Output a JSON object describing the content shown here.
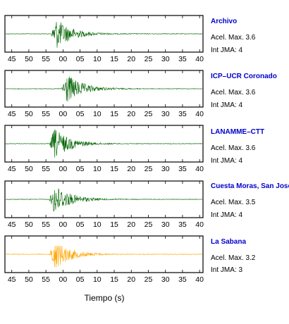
{
  "chart_data": {
    "type": "line",
    "xlabel": "Tiempo (s)",
    "x_tick_labels": [
      "45",
      "50",
      "55",
      "00",
      "05",
      "10",
      "15",
      "20",
      "25",
      "30",
      "35",
      "40"
    ],
    "x_range_s": [
      -17,
      41
    ],
    "grid": false,
    "labels": {
      "acel_prefix": "Acel. Max.",
      "int_prefix": "Int JMA:"
    },
    "panels": [
      {
        "station": "Archivo",
        "acel_max": "3.6",
        "int_jma": "4",
        "trace_color": "#006400",
        "onset_s": -3.5
      },
      {
        "station": "ICP–UCR Coronado",
        "acel_max": "3.6",
        "int_jma": "4",
        "trace_color": "#006400",
        "onset_s": -0.5
      },
      {
        "station": "LANAMME–CTT",
        "acel_max": "3.6",
        "int_jma": "4",
        "trace_color": "#006400",
        "onset_s": -4.0
      },
      {
        "station": "Cuesta Moras, San Jose",
        "acel_max": "3.5",
        "int_jma": "4",
        "trace_color": "#006400",
        "onset_s": -4.0
      },
      {
        "station": "La Sabana",
        "acel_max": "3.2",
        "int_jma": "3",
        "trace_color": "#ffa500",
        "onset_s": -4.0
      }
    ]
  }
}
